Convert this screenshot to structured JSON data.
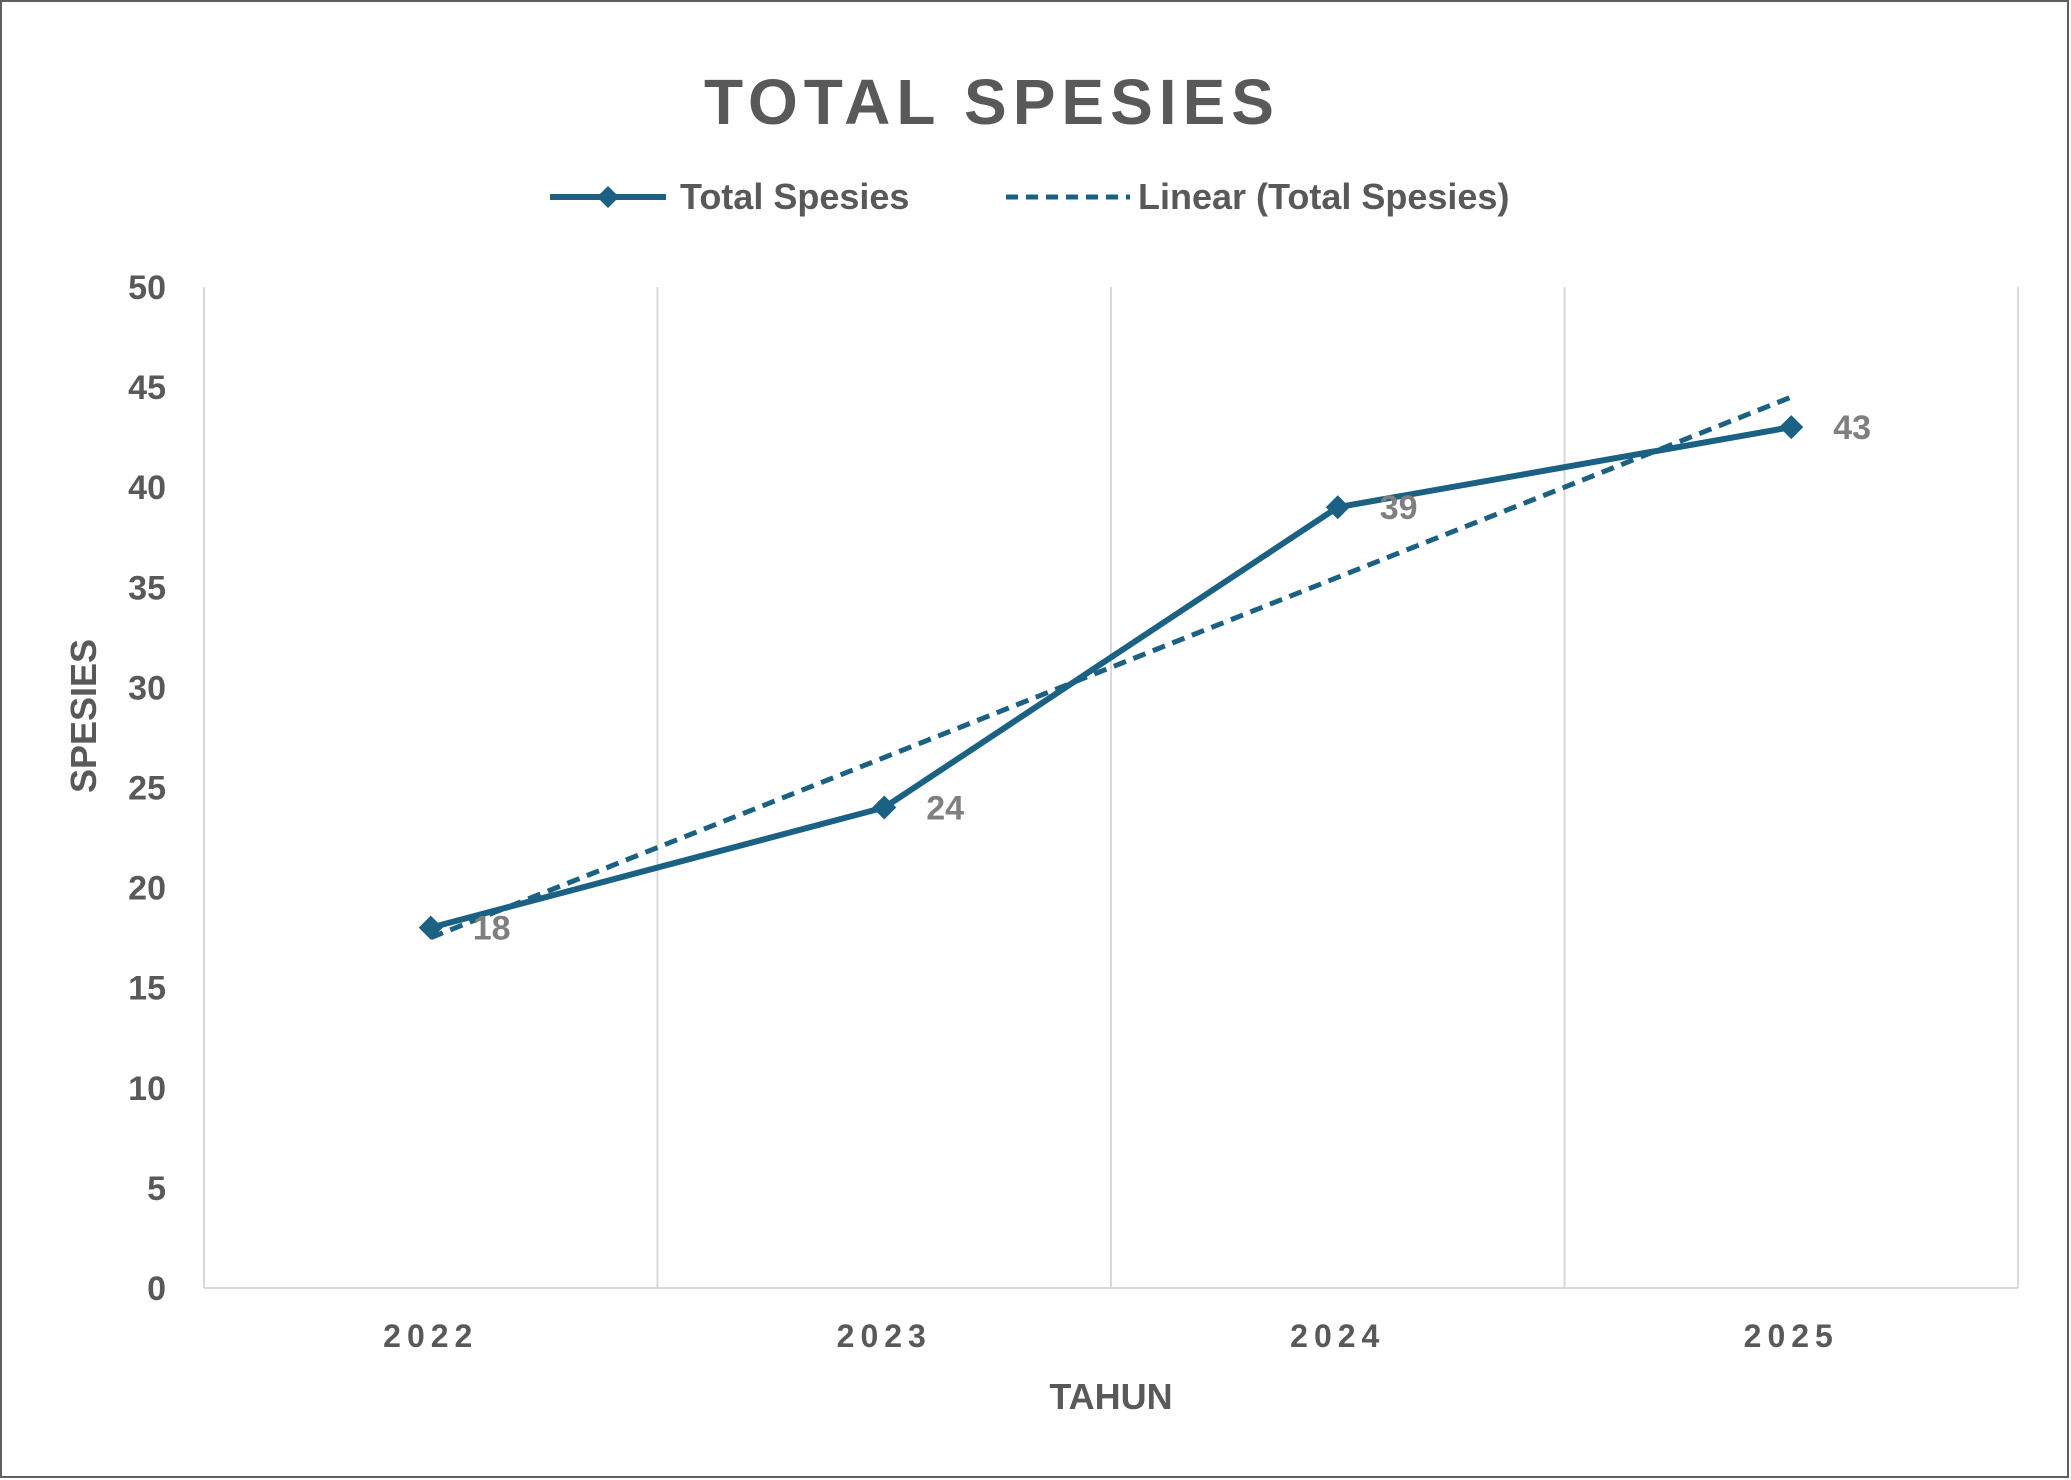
{
  "chart_data": {
    "type": "line",
    "title": "TOTAL SPESIES",
    "xlabel": "TAHUN",
    "ylabel": "SPESIES",
    "categories": [
      "2022",
      "2023",
      "2024",
      "2025"
    ],
    "series": [
      {
        "name": "Total Spesies",
        "values": [
          18,
          24,
          39,
          43
        ],
        "color": "#1b6183",
        "marker": "diamond",
        "data_labels": [
          "18",
          "24",
          "39",
          "43"
        ]
      }
    ],
    "trendline": {
      "name": "Linear (Total Spesies)",
      "type": "linear",
      "style": "dashed",
      "color": "#1b6183",
      "of_series": "Total Spesies"
    },
    "y_ticks": [
      "0",
      "5",
      "10",
      "15",
      "20",
      "25",
      "30",
      "35",
      "40",
      "45",
      "50"
    ],
    "ylim": [
      0,
      50
    ],
    "grid": "vertical",
    "legend_position": "top"
  }
}
